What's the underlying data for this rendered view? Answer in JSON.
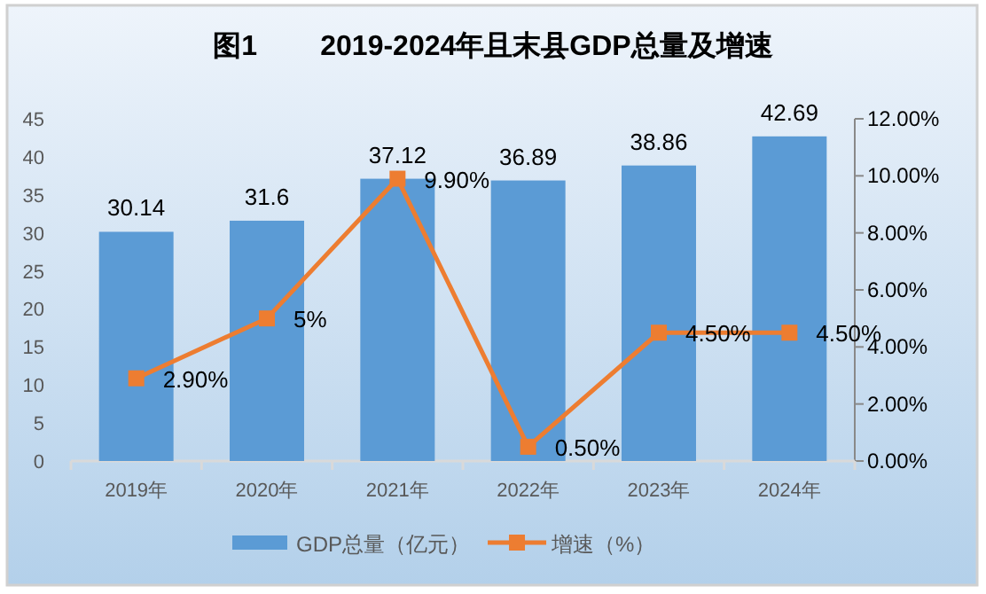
{
  "chart_data": {
    "type": "bar",
    "title": "图1        2019-2024年且末县GDP总量及增速",
    "categories": [
      "2019年",
      "2020年",
      "2021年",
      "2022年",
      "2023年",
      "2024年"
    ],
    "series": [
      {
        "name": "GDP总量（亿元）",
        "color": "#5b9bd5",
        "values": [
          30.14,
          31.6,
          37.12,
          36.89,
          38.86,
          42.69
        ],
        "value_labels": [
          "30.14",
          "31.6",
          "37.12",
          "36.89",
          "38.86",
          "42.69"
        ]
      },
      {
        "name": "增速（%）",
        "type": "line",
        "axis": "y2",
        "color": "#ed7d31",
        "marker": "square",
        "values": [
          2.9,
          5,
          9.9,
          0.5,
          4.5,
          4.5
        ],
        "value_labels": [
          "2.90%",
          "5%",
          "9.90%",
          "0.50%",
          "4.50%",
          "4.50%"
        ]
      }
    ],
    "ylim": [
      0,
      45
    ],
    "yticks": [
      0,
      5,
      10,
      15,
      20,
      25,
      30,
      35,
      40,
      45
    ],
    "y2lim": [
      0,
      12
    ],
    "y2ticks": [
      {
        "value": 0,
        "label": "0.00%"
      },
      {
        "value": 2,
        "label": "2.00%"
      },
      {
        "value": 4,
        "label": "4.00%"
      },
      {
        "value": 6,
        "label": "6.00%"
      },
      {
        "value": 8,
        "label": "8.00%"
      },
      {
        "value": 10,
        "label": "10.00%"
      },
      {
        "value": 12,
        "label": "12.00%"
      }
    ],
    "legend": "bottom"
  }
}
